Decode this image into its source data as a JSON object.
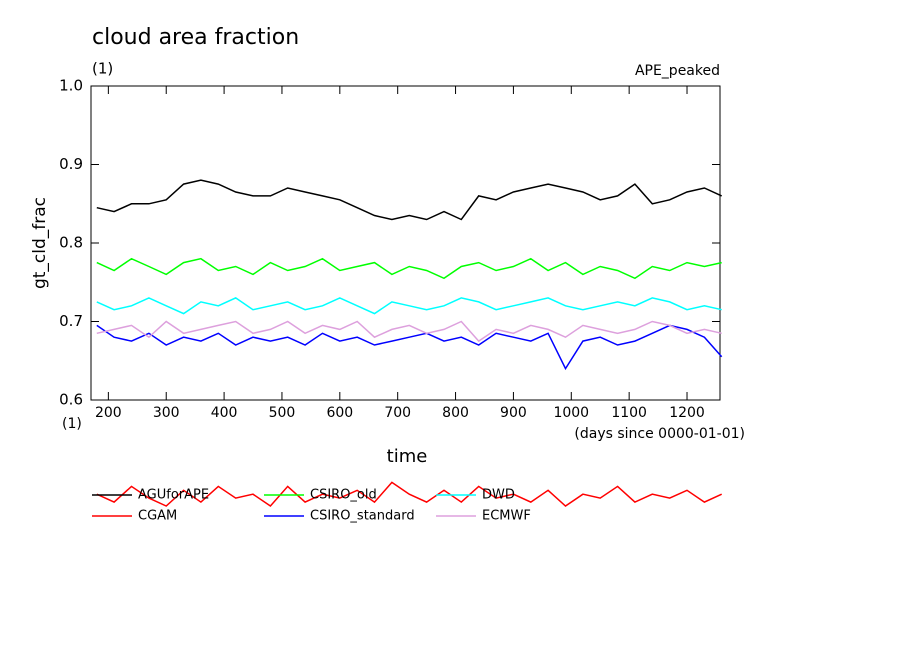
{
  "chart_data": {
    "type": "line",
    "title": "cloud area fraction",
    "subtitle": "(1)",
    "annotation": "APE_peaked",
    "ylabel": "gt_cld_frac",
    "yunit": "(1)",
    "xunit": "(days since 0000-01-01)",
    "xlabel": "time",
    "x": [
      180,
      210,
      240,
      270,
      300,
      330,
      360,
      390,
      420,
      450,
      480,
      510,
      540,
      570,
      600,
      630,
      660,
      690,
      720,
      750,
      780,
      810,
      840,
      870,
      900,
      930,
      960,
      990,
      1020,
      1050,
      1080,
      1110,
      1140,
      1170,
      1200,
      1230,
      1260
    ],
    "xlim": [
      170,
      1257
    ],
    "xticks": [
      200,
      300,
      400,
      500,
      600,
      700,
      800,
      900,
      1000,
      1100,
      1200
    ],
    "ylim": [
      0.6,
      1
    ],
    "yticks": [
      0.6,
      0.7,
      0.8,
      0.9,
      {
        "value": 1,
        "label": "1.0"
      }
    ],
    "series": [
      {
        "name": "AGUforAPE",
        "color": "#000000",
        "values": [
          0.845,
          0.84,
          0.85,
          0.85,
          0.855,
          0.875,
          0.88,
          0.875,
          0.865,
          0.86,
          0.86,
          0.87,
          0.865,
          0.86,
          0.855,
          0.845,
          0.835,
          0.83,
          0.835,
          0.83,
          0.84,
          0.83,
          0.86,
          0.855,
          0.865,
          0.87,
          0.875,
          0.87,
          0.865,
          0.855,
          0.86,
          0.875,
          0.85,
          0.855,
          0.865,
          0.87,
          0.86
        ]
      },
      {
        "name": "CSIRO_old",
        "color": "#00ff00",
        "values": [
          0.775,
          0.765,
          0.78,
          0.77,
          0.76,
          0.775,
          0.78,
          0.765,
          0.77,
          0.76,
          0.775,
          0.765,
          0.77,
          0.78,
          0.765,
          0.77,
          0.775,
          0.76,
          0.77,
          0.765,
          0.755,
          0.77,
          0.775,
          0.765,
          0.77,
          0.78,
          0.765,
          0.775,
          0.76,
          0.77,
          0.765,
          0.755,
          0.77,
          0.765,
          0.775,
          0.77,
          0.775
        ]
      },
      {
        "name": "DWD",
        "color": "#00ffff",
        "values": [
          0.725,
          0.715,
          0.72,
          0.73,
          0.72,
          0.71,
          0.725,
          0.72,
          0.73,
          0.715,
          0.72,
          0.725,
          0.715,
          0.72,
          0.73,
          0.72,
          0.71,
          0.725,
          0.72,
          0.715,
          0.72,
          0.73,
          0.725,
          0.715,
          0.72,
          0.725,
          0.73,
          0.72,
          0.715,
          0.72,
          0.725,
          0.72,
          0.73,
          0.725,
          0.715,
          0.72,
          0.715
        ]
      },
      {
        "name": "CGAM",
        "color": "#ff0000",
        "values": [
          0.48,
          0.47,
          0.49,
          0.475,
          0.465,
          0.485,
          0.47,
          0.49,
          0.475,
          0.48,
          0.465,
          0.49,
          0.47,
          0.48,
          0.475,
          0.485,
          0.47,
          0.495,
          0.48,
          0.47,
          0.485,
          0.47,
          0.49,
          0.475,
          0.48,
          0.47,
          0.485,
          0.465,
          0.48,
          0.475,
          0.49,
          0.47,
          0.48,
          0.475,
          0.485,
          0.47,
          0.48
        ]
      },
      {
        "name": "CSIRO_standard",
        "color": "#0000ff",
        "values": [
          0.695,
          0.68,
          0.675,
          0.685,
          0.67,
          0.68,
          0.675,
          0.685,
          0.67,
          0.68,
          0.675,
          0.68,
          0.67,
          0.685,
          0.675,
          0.68,
          0.67,
          0.675,
          0.68,
          0.685,
          0.675,
          0.68,
          0.67,
          0.685,
          0.68,
          0.675,
          0.685,
          0.64,
          0.675,
          0.68,
          0.67,
          0.675,
          0.685,
          0.695,
          0.69,
          0.68,
          0.655
        ]
      },
      {
        "name": "ECMWF",
        "color": "#dda0dd",
        "values": [
          0.685,
          0.69,
          0.695,
          0.68,
          0.7,
          0.685,
          0.69,
          0.695,
          0.7,
          0.685,
          0.69,
          0.7,
          0.685,
          0.695,
          0.69,
          0.7,
          0.68,
          0.69,
          0.695,
          0.685,
          0.69,
          0.7,
          0.675,
          0.69,
          0.685,
          0.695,
          0.69,
          0.68,
          0.695,
          0.69,
          0.685,
          0.69,
          0.7,
          0.695,
          0.685,
          0.69,
          0.685
        ]
      }
    ]
  }
}
